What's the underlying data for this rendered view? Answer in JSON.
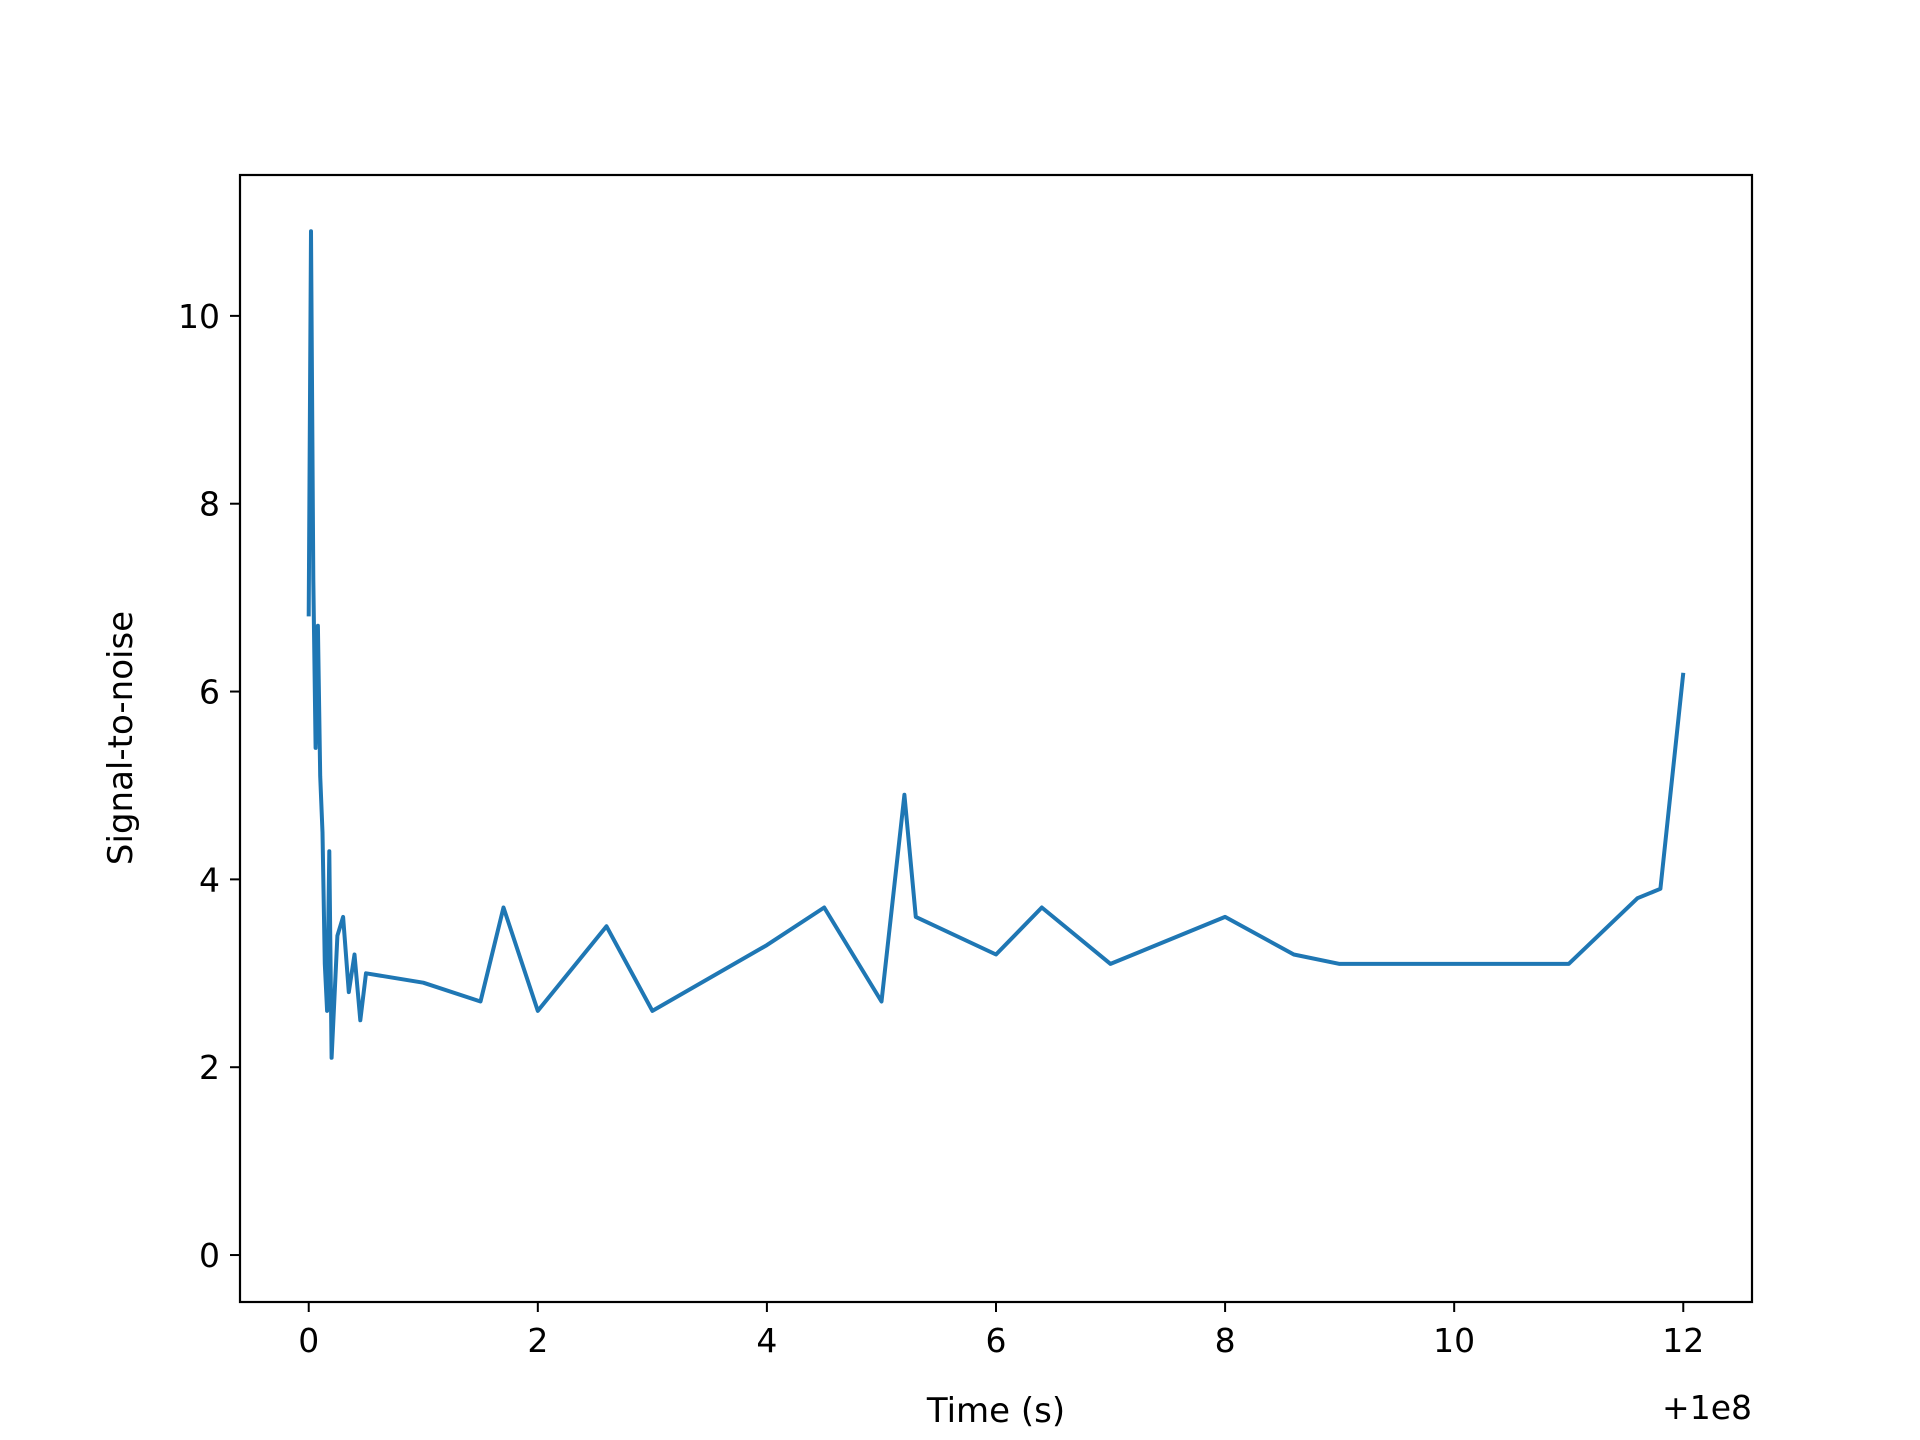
{
  "chart_data": {
    "type": "line",
    "title": "",
    "xlabel": "Time (s)",
    "ylabel": "Signal-to-noise",
    "x_offset_label": "+1e8",
    "xlim": [
      -0.6,
      12.6
    ],
    "ylim": [
      -0.5,
      11.5
    ],
    "xticks": [
      0,
      2,
      4,
      6,
      8,
      10,
      12
    ],
    "xtick_labels": [
      "0",
      "2",
      "4",
      "6",
      "8",
      "10",
      "12"
    ],
    "yticks": [
      0,
      2,
      4,
      6,
      8,
      10
    ],
    "ytick_labels": [
      "0",
      "2",
      "4",
      "6",
      "8",
      "10"
    ],
    "grid": false,
    "legend": "none",
    "color": "#1f77b4",
    "series": [
      {
        "x": [
          0.0,
          0.02,
          0.04,
          0.06,
          0.08,
          0.1,
          0.12,
          0.14,
          0.16,
          0.18,
          0.2,
          0.25,
          0.3,
          0.35,
          0.4,
          0.45,
          0.5,
          1.0,
          1.5,
          1.7,
          2.0,
          2.6,
          3.0,
          4.0,
          4.5,
          5.0,
          5.2,
          5.3,
          6.0,
          6.4,
          7.0,
          8.0,
          8.6,
          9.0,
          10.0,
          11.0,
          11.6,
          11.8,
          12.0
        ],
        "y": [
          6.8,
          10.9,
          7.2,
          5.4,
          6.7,
          5.1,
          4.5,
          3.1,
          2.6,
          4.3,
          2.1,
          3.4,
          3.6,
          2.8,
          3.2,
          2.5,
          3.0,
          2.9,
          2.7,
          3.7,
          2.6,
          3.5,
          2.6,
          3.3,
          3.7,
          2.7,
          4.9,
          3.6,
          3.2,
          3.7,
          3.1,
          3.6,
          3.2,
          3.1,
          3.1,
          3.1,
          3.8,
          3.9,
          6.2
        ]
      }
    ]
  }
}
